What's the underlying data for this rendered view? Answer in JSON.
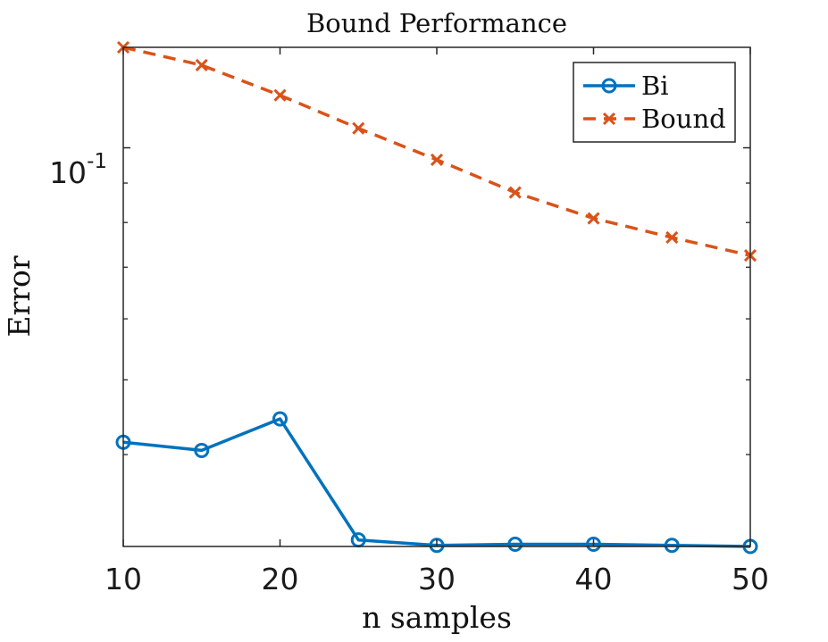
{
  "chart_data": {
    "type": "line",
    "title": "Bound Performance",
    "xlabel": "n samples",
    "ylabel": "Error",
    "x": [
      10,
      15,
      20,
      25,
      30,
      35,
      40,
      45,
      50
    ],
    "xlim": [
      10,
      50
    ],
    "xticks": [
      10,
      20,
      30,
      40,
      50
    ],
    "yscale": "log",
    "ylim": [
      0.0304,
      0.135
    ],
    "ytick_label_base": "10",
    "ytick_label_exponent": "-1",
    "grid": false,
    "legend_position": "top-right",
    "series": [
      {
        "name": "Bi",
        "color": "#0072BD",
        "marker": "circle",
        "line_style": "solid",
        "values": [
          0.0415,
          0.0405,
          0.0445,
          0.031,
          0.0305,
          0.0306,
          0.0306,
          0.0305,
          0.0304
        ]
      },
      {
        "name": "Bound",
        "color": "#D95319",
        "marker": "x",
        "line_style": "dashed",
        "values": [
          0.135,
          0.128,
          0.117,
          0.106,
          0.0965,
          0.0875,
          0.081,
          0.0765,
          0.0725
        ]
      }
    ]
  }
}
